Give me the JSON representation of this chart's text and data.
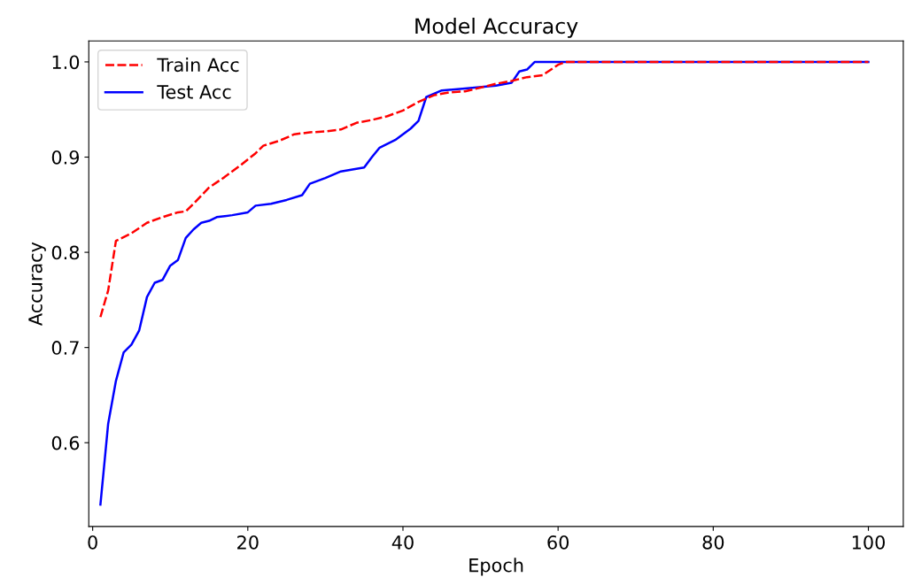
{
  "chart_data": {
    "type": "line",
    "title": "Model Accuracy",
    "xlabel": "Epoch",
    "ylabel": "Accuracy",
    "xlim": [
      -0.5,
      104.5
    ],
    "ylim": [
      0.512,
      1.022
    ],
    "xticks": [
      0,
      20,
      40,
      60,
      80,
      100
    ],
    "yticks": [
      0.6,
      0.7,
      0.8,
      0.9,
      {
        "value": 1.0,
        "label": "1.0"
      }
    ],
    "grid": false,
    "legend": "top left",
    "series": [
      {
        "name": "Train Acc",
        "color": "#ff0000",
        "line_style": "dashed",
        "x": [
          1,
          2,
          3,
          5,
          7,
          9,
          11,
          12,
          13,
          15,
          17,
          19,
          21,
          22,
          24,
          26,
          28,
          30,
          32,
          34,
          36,
          38,
          40,
          42,
          44,
          46,
          48,
          50,
          52,
          54,
          56,
          58,
          60,
          61,
          100
        ],
        "values": [
          0.732,
          0.76,
          0.812,
          0.82,
          0.831,
          0.837,
          0.842,
          0.843,
          0.851,
          0.868,
          0.879,
          0.891,
          0.904,
          0.912,
          0.917,
          0.924,
          0.926,
          0.927,
          0.929,
          0.936,
          0.939,
          0.943,
          0.949,
          0.958,
          0.965,
          0.968,
          0.969,
          0.973,
          0.977,
          0.98,
          0.984,
          0.986,
          0.997,
          1.0,
          1.0
        ]
      },
      {
        "name": "Test Acc",
        "color": "#0000ff",
        "line_style": "solid",
        "x": [
          1,
          2,
          3,
          4,
          5,
          6,
          7,
          8,
          9,
          10,
          11,
          12,
          13,
          14,
          15,
          16,
          18,
          20,
          21,
          23,
          25,
          27,
          28,
          30,
          32,
          35,
          36,
          37,
          39,
          41,
          42,
          43,
          45,
          48,
          52,
          54,
          55,
          56,
          57,
          100
        ],
        "values": [
          0.535,
          0.62,
          0.665,
          0.695,
          0.703,
          0.718,
          0.753,
          0.768,
          0.771,
          0.786,
          0.792,
          0.815,
          0.824,
          0.831,
          0.833,
          0.837,
          0.839,
          0.842,
          0.849,
          0.851,
          0.855,
          0.86,
          0.872,
          0.878,
          0.885,
          0.889,
          0.9,
          0.91,
          0.918,
          0.93,
          0.938,
          0.963,
          0.97,
          0.972,
          0.975,
          0.978,
          0.99,
          0.992,
          1.0,
          1.0
        ]
      }
    ]
  }
}
